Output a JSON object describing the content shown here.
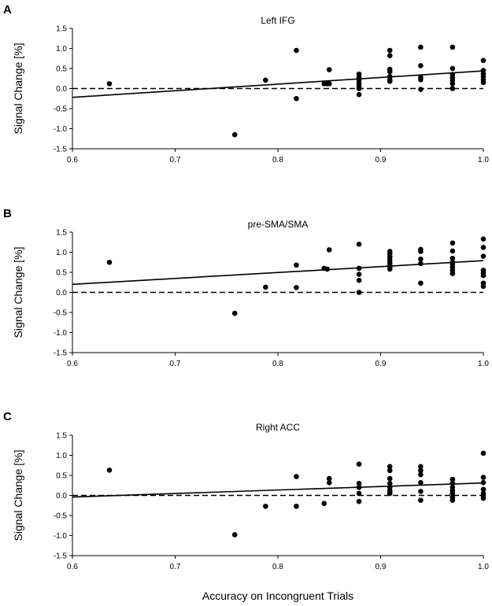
{
  "figure": {
    "xlabel": "Accuracy on Incongruent Trials"
  },
  "chart_data": [
    {
      "type": "scatter",
      "panel": "A",
      "title": "Left IFG",
      "xlabel": "",
      "ylabel": "Signal Change [%]",
      "xlim": [
        0.6,
        1.0
      ],
      "ylim": [
        -1.5,
        1.5
      ],
      "xticks": [
        "0.6",
        "0.7",
        "0.8",
        "0.9",
        "1.0"
      ],
      "yticks": [
        "1.5",
        "1.0",
        "0.5",
        "0.0",
        "-0.5",
        "-1.0",
        "-1.5"
      ],
      "x": [
        0.636,
        0.758,
        0.788,
        0.818,
        0.818,
        0.845,
        0.848,
        0.85,
        0.85,
        0.879,
        0.879,
        0.879,
        0.879,
        0.879,
        0.879,
        0.879,
        0.909,
        0.909,
        0.909,
        0.909,
        0.909,
        0.909,
        0.909,
        0.939,
        0.939,
        0.939,
        0.939,
        0.939,
        0.97,
        0.97,
        0.97,
        0.97,
        0.97,
        0.97,
        0.97,
        1.0,
        1.0,
        1.0,
        1.0,
        1.0,
        1.0
      ],
      "y": [
        0.12,
        -1.15,
        0.21,
        0.95,
        -0.25,
        0.12,
        0.12,
        0.47,
        0.12,
        0.36,
        0.28,
        0.2,
        0.12,
        0.05,
        0.0,
        -0.15,
        0.95,
        0.82,
        0.48,
        0.42,
        0.3,
        0.22,
        0.18,
        1.03,
        0.57,
        0.28,
        0.22,
        -0.02,
        1.03,
        0.5,
        0.35,
        0.27,
        0.2,
        0.12,
        0.0,
        0.7,
        0.45,
        0.37,
        0.3,
        0.22,
        0.15
      ],
      "fit_line": {
        "x": [
          0.6,
          1.0
        ],
        "y": [
          -0.22,
          0.44
        ]
      },
      "reference_line": {
        "y": 0.0,
        "style": "dashed"
      }
    },
    {
      "type": "scatter",
      "panel": "B",
      "title": "pre-SMA/SMA",
      "xlabel": "",
      "ylabel": "Signal Change [%]",
      "xlim": [
        0.6,
        1.0
      ],
      "ylim": [
        -1.5,
        1.5
      ],
      "xticks": [
        "0.6",
        "0.7",
        "0.8",
        "0.9",
        "1.0"
      ],
      "yticks": [
        "1.5",
        "1.0",
        "0.5",
        "0.0",
        "-0.5",
        "-1.0",
        "-1.5"
      ],
      "x": [
        0.636,
        0.758,
        0.788,
        0.818,
        0.818,
        0.845,
        0.848,
        0.85,
        0.879,
        0.879,
        0.879,
        0.879,
        0.879,
        0.909,
        0.909,
        0.909,
        0.909,
        0.909,
        0.909,
        0.909,
        0.909,
        0.939,
        0.939,
        0.939,
        0.939,
        0.939,
        0.97,
        0.97,
        0.97,
        0.97,
        0.97,
        0.97,
        0.97,
        0.97,
        1.0,
        1.0,
        1.0,
        1.0,
        1.0,
        1.0,
        1.0,
        1.0
      ],
      "y": [
        0.75,
        -0.52,
        0.13,
        0.68,
        0.12,
        0.6,
        0.58,
        1.06,
        1.2,
        0.6,
        0.45,
        0.3,
        0.0,
        1.02,
        0.95,
        0.88,
        0.8,
        0.73,
        0.67,
        0.62,
        0.58,
        1.07,
        1.02,
        0.83,
        0.72,
        0.23,
        1.23,
        1.03,
        0.85,
        0.75,
        0.7,
        0.62,
        0.55,
        0.47,
        1.33,
        1.12,
        0.9,
        0.55,
        0.48,
        0.42,
        0.23,
        0.15
      ],
      "fit_line": {
        "x": [
          0.6,
          1.0
        ],
        "y": [
          0.2,
          0.79
        ]
      },
      "reference_line": {
        "y": 0.0,
        "style": "dashed"
      }
    },
    {
      "type": "scatter",
      "panel": "C",
      "title": "Right ACC",
      "xlabel": "Accuracy on Incongruent Trials",
      "ylabel": "Signal Change [%]",
      "xlim": [
        0.6,
        1.0
      ],
      "ylim": [
        -1.5,
        1.5
      ],
      "xticks": [
        "0.6",
        "0.7",
        "0.8",
        "0.9",
        "1.0"
      ],
      "yticks": [
        "1.5",
        "1.0",
        "0.5",
        "0.0",
        "-0.5",
        "-1.0",
        "-1.5"
      ],
      "x": [
        0.636,
        0.758,
        0.788,
        0.818,
        0.818,
        0.845,
        0.85,
        0.85,
        0.879,
        0.879,
        0.879,
        0.879,
        0.879,
        0.909,
        0.909,
        0.909,
        0.909,
        0.909,
        0.909,
        0.909,
        0.909,
        0.939,
        0.939,
        0.939,
        0.939,
        0.939,
        0.939,
        0.97,
        0.97,
        0.97,
        0.97,
        0.97,
        0.97,
        0.97,
        1.0,
        1.0,
        1.0,
        1.0,
        1.0,
        1.0,
        1.0
      ],
      "y": [
        0.63,
        -0.98,
        -0.27,
        0.47,
        -0.27,
        -0.2,
        0.42,
        0.32,
        0.78,
        0.3,
        0.2,
        0.05,
        -0.15,
        0.72,
        0.62,
        0.42,
        0.3,
        0.2,
        0.12,
        0.08,
        0.05,
        0.72,
        0.62,
        0.52,
        0.32,
        0.1,
        -0.12,
        0.4,
        0.3,
        0.2,
        0.12,
        0.05,
        -0.05,
        -0.12,
        1.05,
        0.45,
        0.32,
        0.15,
        0.05,
        0.0,
        -0.07
      ],
      "fit_line": {
        "x": [
          0.6,
          1.0
        ],
        "y": [
          -0.04,
          0.31
        ]
      },
      "reference_line": {
        "y": 0.0,
        "style": "dashed"
      }
    }
  ]
}
